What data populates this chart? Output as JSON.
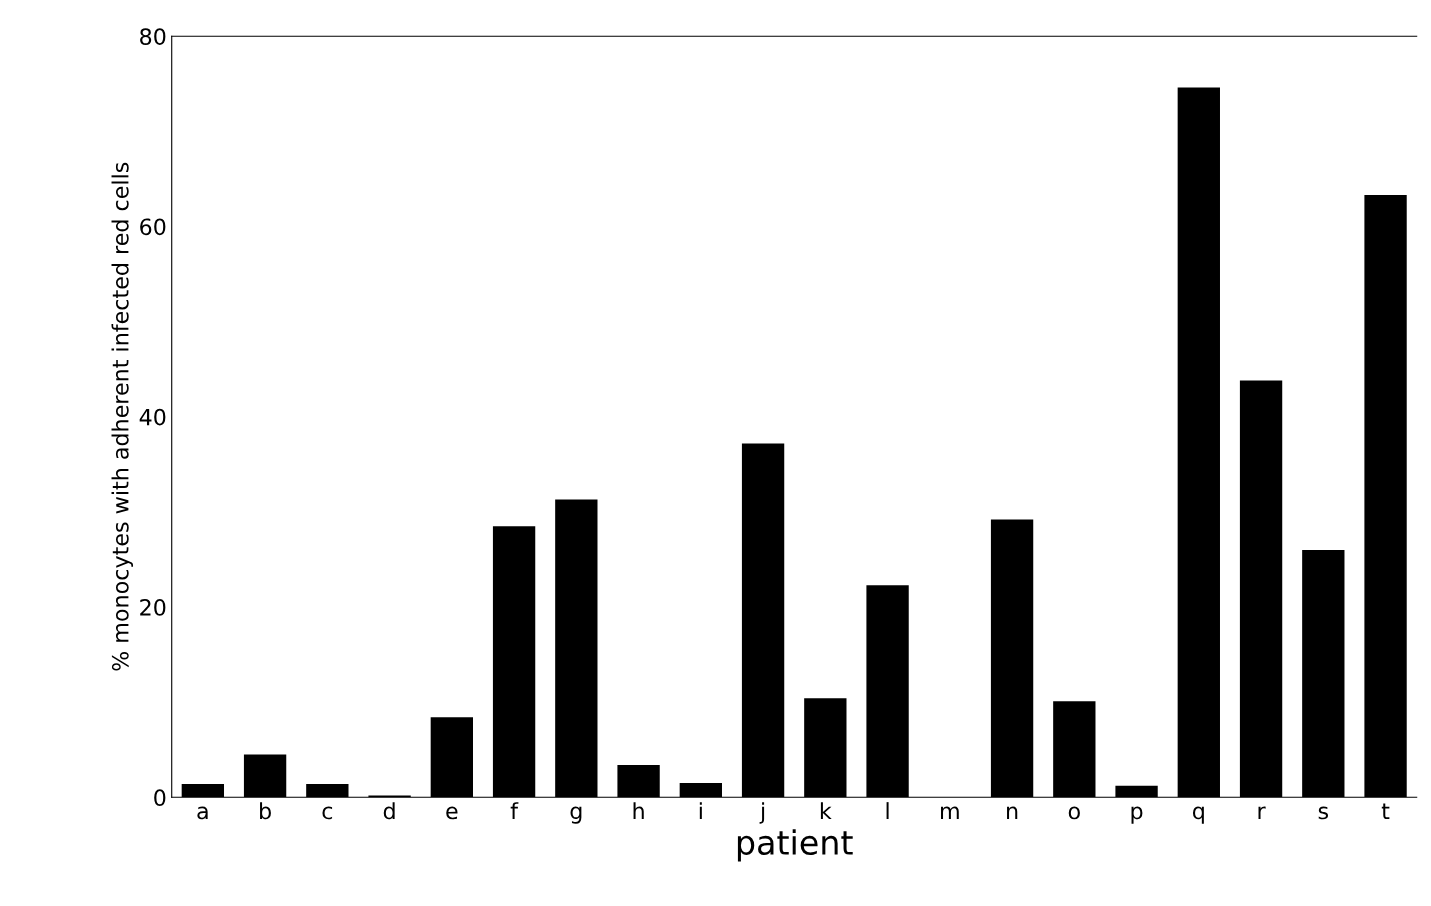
{
  "chart_data": {
    "type": "bar",
    "xlabel": "patient",
    "ylabel": "% monocytes with adherent infected red cells",
    "categories": [
      "a",
      "b",
      "c",
      "d",
      "e",
      "f",
      "g",
      "h",
      "i",
      "j",
      "k",
      "l",
      "m",
      "n",
      "o",
      "p",
      "q",
      "r",
      "s",
      "t"
    ],
    "values": [
      1.4,
      4.5,
      1.4,
      0.2,
      8.4,
      28.5,
      31.3,
      3.4,
      1.5,
      37.2,
      10.4,
      22.3,
      0,
      29.2,
      10.1,
      1.2,
      74.6,
      43.8,
      26,
      63.3
    ],
    "color": "#000000",
    "ylim": [
      0,
      80
    ],
    "yticks": [
      0,
      20,
      40,
      60,
      80
    ],
    "grid": false,
    "legend": false
  }
}
